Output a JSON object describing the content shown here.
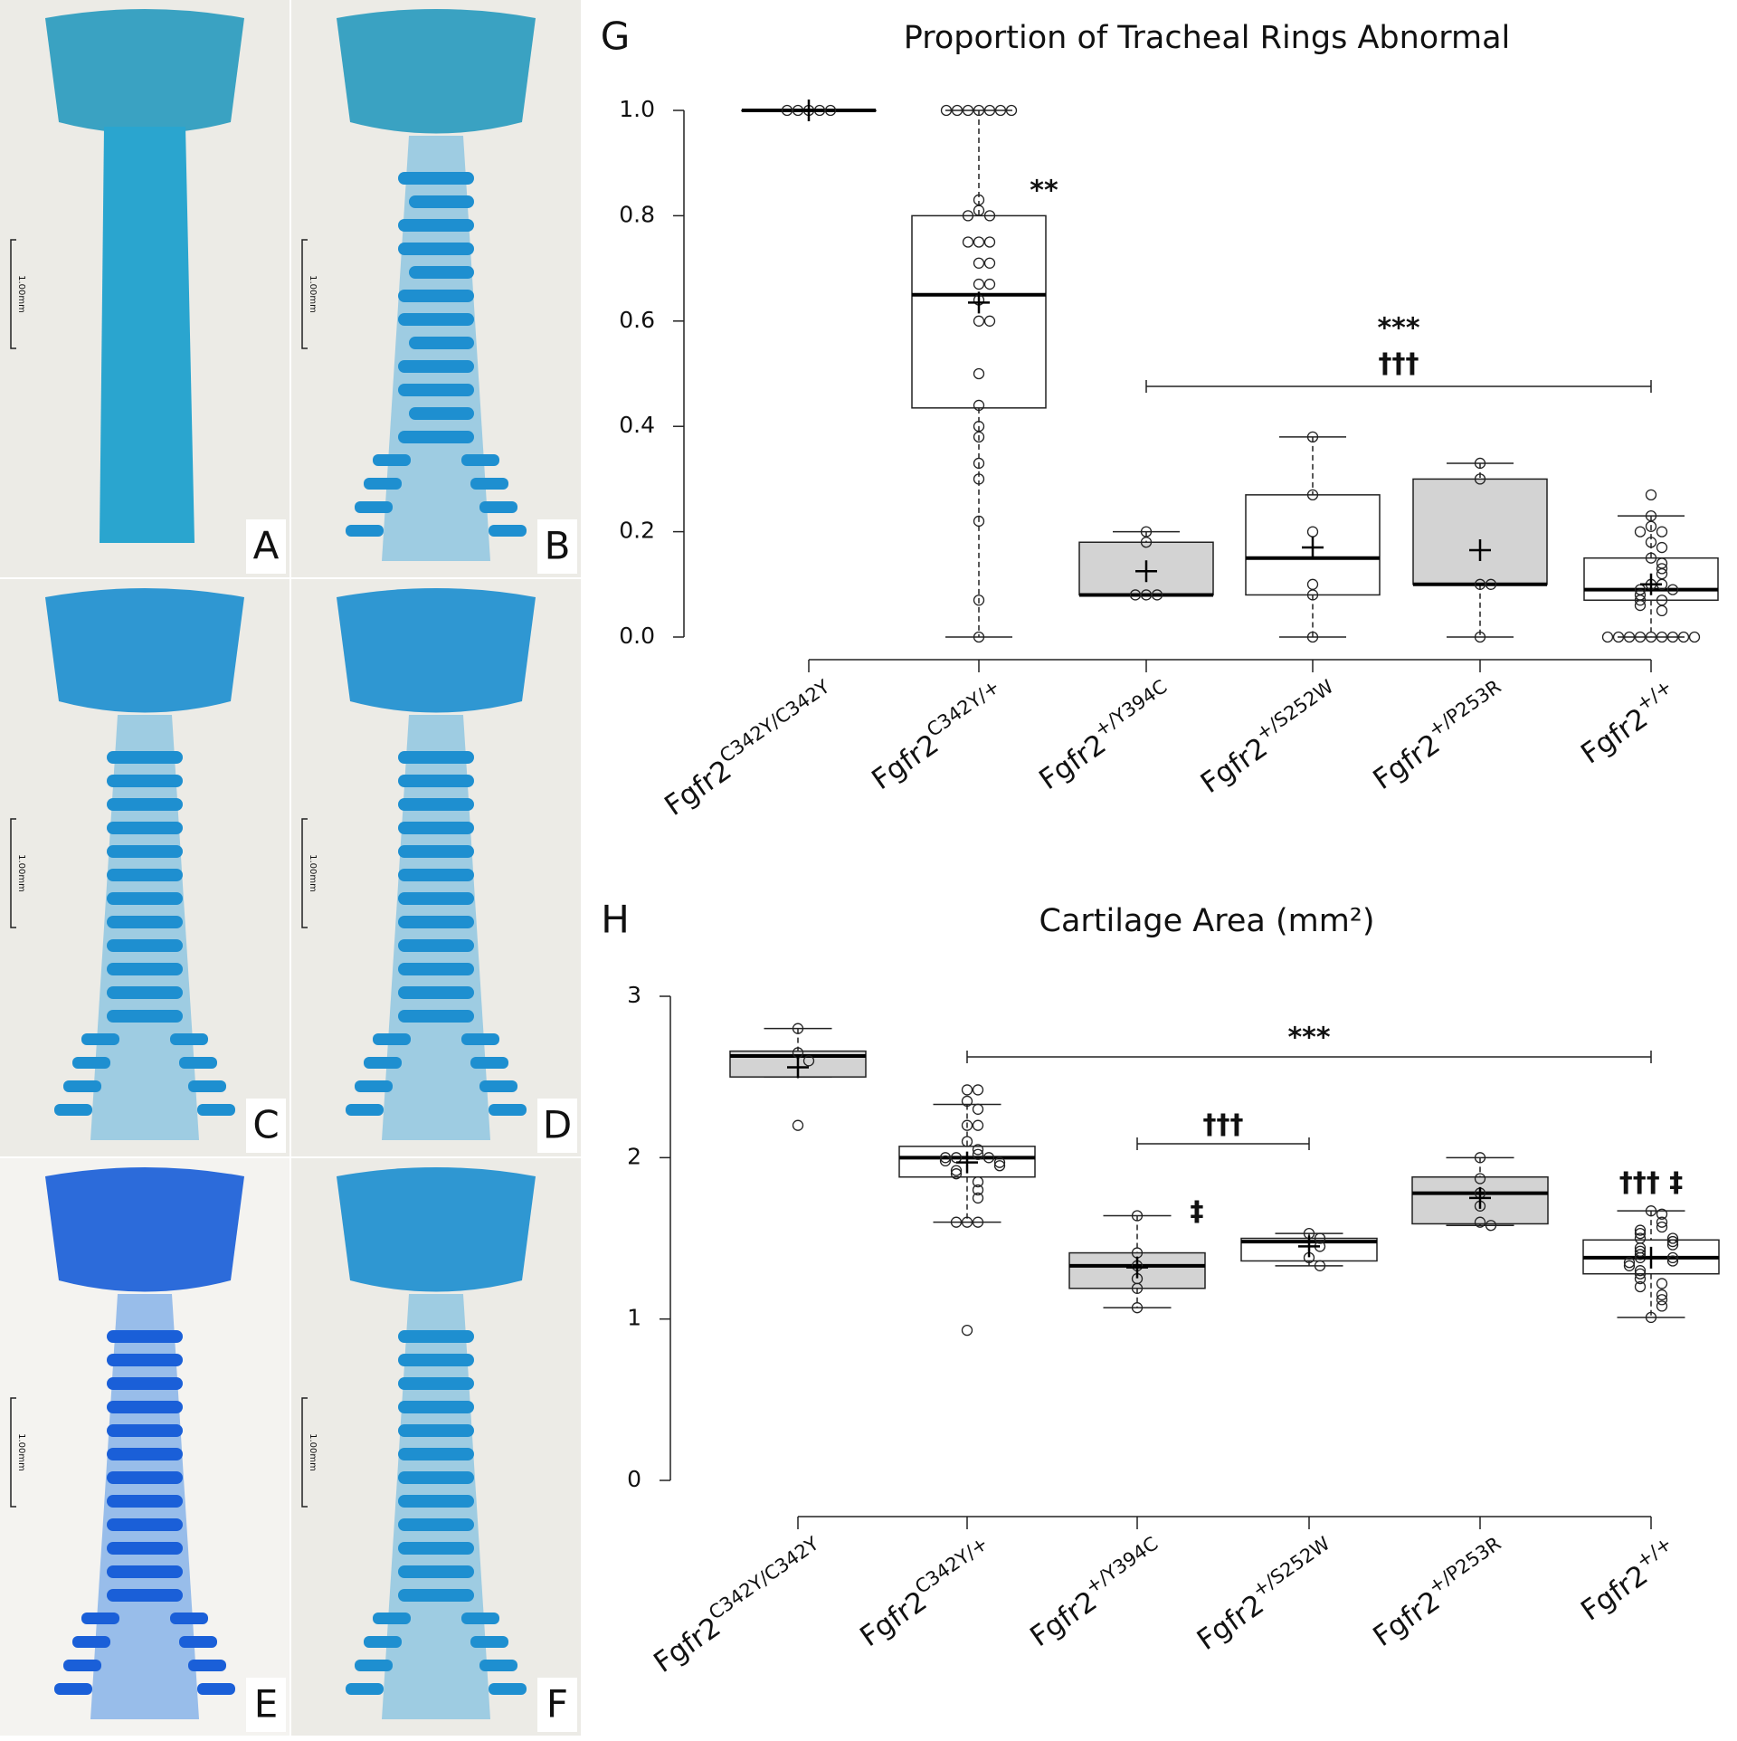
{
  "panels": [
    {
      "label": "A",
      "scale": "1.00mm"
    },
    {
      "label": "B",
      "scale": "1.00mm"
    },
    {
      "label": "C",
      "scale": "1.00mm"
    },
    {
      "label": "D",
      "scale": "1.00mm"
    },
    {
      "label": "E",
      "scale": "1.00mm"
    },
    {
      "label": "F",
      "scale": "1.00mm"
    }
  ],
  "chart_data": [
    {
      "type": "box",
      "label": "G",
      "title": "Proportion of Tracheal Rings Abnormal",
      "gene": "Fgfr2",
      "categories": [
        "C342Y/C342Y",
        "C342Y/+",
        "+/Y394C",
        "+/S252W",
        "+/P253R",
        "+/+"
      ],
      "ylim": [
        0,
        1
      ],
      "yticks": [
        {
          "value": 0,
          "label": "0.0"
        },
        {
          "value": 0.2,
          "label": "0.2"
        },
        {
          "value": 0.4,
          "label": "0.4"
        },
        {
          "value": 0.6,
          "label": "0.6"
        },
        {
          "value": 0.8,
          "label": "0.8"
        },
        {
          "value": 1,
          "label": "1.0"
        }
      ],
      "boxes": [
        {
          "fill": "#ffffff",
          "whisker_low": 1,
          "q1": 1,
          "median": 1,
          "q3": 1,
          "whisker_high": 1,
          "mean": 1,
          "points": [
            1,
            1,
            1,
            1,
            1
          ]
        },
        {
          "fill": "#ffffff",
          "whisker_low": 0,
          "q1": 0.435,
          "median": 0.65,
          "q3": 0.8,
          "whisker_high": 1,
          "mean": 0.635,
          "points": [
            1,
            1,
            1,
            1,
            1,
            1,
            1,
            0.83,
            0.81,
            0.8,
            0.8,
            0.75,
            0.75,
            0.75,
            0.71,
            0.71,
            0.67,
            0.67,
            0.64,
            0.6,
            0.6,
            0.5,
            0.44,
            0.4,
            0.38,
            0.33,
            0.3,
            0.22,
            0.07,
            0
          ]
        },
        {
          "fill": "#d3d3d3",
          "whisker_low": 0.08,
          "q1": 0.08,
          "median": 0.08,
          "q3": 0.18,
          "whisker_high": 0.2,
          "mean": 0.125,
          "points": [
            0.2,
            0.18,
            0.08,
            0.08,
            0.08
          ]
        },
        {
          "fill": "#ffffff",
          "whisker_low": 0,
          "q1": 0.08,
          "median": 0.15,
          "q3": 0.27,
          "whisker_high": 0.38,
          "mean": 0.17,
          "points": [
            0.38,
            0.27,
            0.2,
            0.1,
            0.08,
            0
          ]
        },
        {
          "fill": "#d3d3d3",
          "whisker_low": 0,
          "q1": 0.1,
          "median": 0.1,
          "q3": 0.3,
          "whisker_high": 0.33,
          "mean": 0.165,
          "points": [
            0.33,
            0.3,
            0.1,
            0.1,
            0
          ]
        },
        {
          "fill": "#ffffff",
          "whisker_low": 0,
          "q1": 0.07,
          "median": 0.09,
          "q3": 0.15,
          "whisker_high": 0.23,
          "mean": 0.1,
          "points": [
            0.27,
            0.23,
            0.21,
            0.2,
            0.2,
            0.18,
            0.17,
            0.15,
            0.14,
            0.13,
            0.12,
            0.1,
            0.1,
            0.09,
            0.09,
            0.08,
            0.07,
            0.07,
            0.06,
            0.05,
            0,
            0,
            0,
            0,
            0,
            0,
            0,
            0,
            0
          ]
        }
      ],
      "annotations": [
        {
          "texts": [
            "**"
          ],
          "at": 1
        },
        {
          "texts": [
            "***",
            "†††"
          ],
          "from": 2,
          "to": 5
        }
      ]
    },
    {
      "type": "box",
      "label": "H",
      "title": "Cartilage Area (mm²)",
      "gene": "Fgfr2",
      "categories": [
        "C342Y/C342Y",
        "C342Y/+",
        "+/Y394C",
        "+/S252W",
        "+/P253R",
        "+/+"
      ],
      "ylim": [
        0,
        3
      ],
      "yticks": [
        0,
        1,
        2,
        3
      ],
      "boxes": [
        {
          "fill": "#d3d3d3",
          "whisker_low": 2.5,
          "q1": 2.5,
          "median": 2.63,
          "q3": 2.66,
          "whisker_high": 2.8,
          "mean": 2.56,
          "points": [
            2.8,
            2.65,
            2.6,
            2.2
          ]
        },
        {
          "fill": "#ffffff",
          "whisker_low": 1.6,
          "q1": 1.88,
          "median": 2,
          "q3": 2.07,
          "whisker_high": 2.33,
          "mean": 1.97,
          "points": [
            2.42,
            2.42,
            2.35,
            2.3,
            2.2,
            2.2,
            2.1,
            2.05,
            2.02,
            2,
            2,
            2,
            1.98,
            1.97,
            1.95,
            1.92,
            1.9,
            1.85,
            1.8,
            1.75,
            1.6,
            1.6,
            1.6,
            0.93
          ]
        },
        {
          "fill": "#d3d3d3",
          "whisker_low": 1.07,
          "q1": 1.19,
          "median": 1.33,
          "q3": 1.41,
          "whisker_high": 1.64,
          "mean": 1.32,
          "points": [
            1.64,
            1.41,
            1.33,
            1.25,
            1.19,
            1.07
          ]
        },
        {
          "fill": "#ffffff",
          "whisker_low": 1.33,
          "q1": 1.36,
          "median": 1.48,
          "q3": 1.5,
          "whisker_high": 1.53,
          "mean": 1.45,
          "points": [
            1.53,
            1.5,
            1.45,
            1.38,
            1.33
          ]
        },
        {
          "fill": "#d3d3d3",
          "whisker_low": 1.58,
          "q1": 1.59,
          "median": 1.78,
          "q3": 1.88,
          "whisker_high": 2,
          "mean": 1.75,
          "points": [
            2,
            1.87,
            1.78,
            1.7,
            1.6,
            1.58
          ]
        },
        {
          "fill": "#ffffff",
          "whisker_low": 1.01,
          "q1": 1.28,
          "median": 1.38,
          "q3": 1.49,
          "whisker_high": 1.67,
          "mean": 1.38,
          "points": [
            1.67,
            1.65,
            1.6,
            1.57,
            1.55,
            1.53,
            1.5,
            1.5,
            1.48,
            1.46,
            1.44,
            1.42,
            1.4,
            1.38,
            1.38,
            1.36,
            1.35,
            1.33,
            1.3,
            1.28,
            1.25,
            1.22,
            1.2,
            1.15,
            1.12,
            1.08,
            1.01
          ]
        }
      ],
      "annotations": [
        {
          "texts": [
            "***"
          ],
          "from": 1,
          "to": 5
        },
        {
          "texts": [
            "†††"
          ],
          "from": 2,
          "to": 3
        },
        {
          "texts": [
            "‡"
          ],
          "at": 2
        },
        {
          "texts": [
            "††† ‡"
          ],
          "at": 5
        }
      ]
    }
  ]
}
